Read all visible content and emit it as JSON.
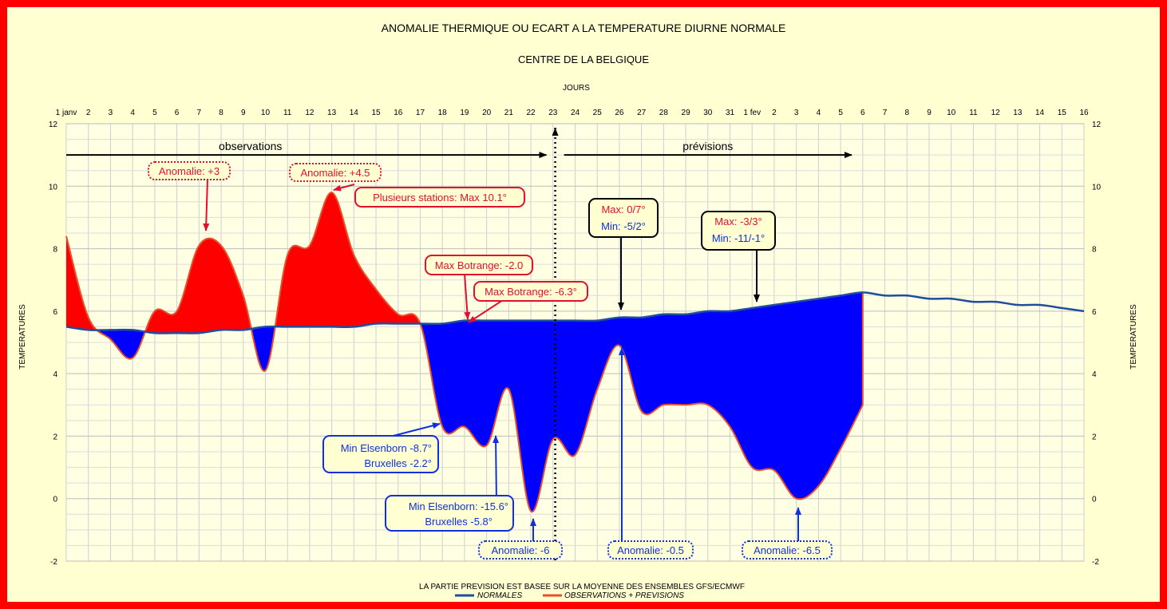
{
  "chart_data": {
    "type": "area",
    "title": "ANOMALIE THERMIQUE OU ECART A LA TEMPERATURE DIURNE NORMALE",
    "subtitle": "CENTRE DE LA BELGIQUE",
    "xlabel": "JOURS",
    "ylabel_left": "TEMPERATURES",
    "ylabel_right": "TEMPERATURES",
    "ylim": [
      -2,
      12
    ],
    "yticks": [
      -2,
      0,
      2,
      4,
      6,
      8,
      10,
      12
    ],
    "xlim": [
      1,
      47
    ],
    "grid": true,
    "xtick_labels": [
      "1 janv",
      "2",
      "3",
      "4",
      "5",
      "6",
      "7",
      "8",
      "9",
      "10",
      "11",
      "12",
      "13",
      "14",
      "15",
      "16",
      "17",
      "18",
      "19",
      "20",
      "21",
      "22",
      "23",
      "24",
      "25",
      "26",
      "27",
      "28",
      "29",
      "30",
      "31",
      "1 fev",
      "2",
      "3",
      "4",
      "5",
      "6",
      "7",
      "8",
      "9",
      "10",
      "11",
      "12",
      "13",
      "14",
      "15",
      "16"
    ],
    "footnote": "LA PARTIE PREVISION EST BASEE SUR LA MOYENNE DES ENSEMBLES GFS/ECMWF",
    "legend_position": "bottom",
    "series": [
      {
        "name": "NORMALES",
        "color": "#1f4e9c",
        "x": [
          1,
          2,
          3,
          4,
          5,
          6,
          7,
          8,
          9,
          10,
          11,
          12,
          13,
          14,
          15,
          16,
          17,
          18,
          19,
          20,
          21,
          22,
          23,
          24,
          25,
          26,
          27,
          28,
          29,
          30,
          31,
          32,
          33,
          34,
          35,
          36,
          37,
          38,
          39,
          40,
          41,
          42,
          43,
          44,
          45,
          46,
          47
        ],
        "y": [
          5.5,
          5.4,
          5.4,
          5.4,
          5.3,
          5.3,
          5.3,
          5.4,
          5.4,
          5.5,
          5.5,
          5.5,
          5.5,
          5.5,
          5.6,
          5.6,
          5.6,
          5.6,
          5.7,
          5.7,
          5.7,
          5.7,
          5.7,
          5.7,
          5.7,
          5.8,
          5.8,
          5.9,
          5.9,
          6.0,
          6.0,
          6.1,
          6.2,
          6.3,
          6.4,
          6.5,
          6.6,
          6.5,
          6.5,
          6.4,
          6.4,
          6.3,
          6.3,
          6.2,
          6.2,
          6.1,
          6.0
        ]
      },
      {
        "name": "OBSERVATIONS + PREVISIONS",
        "color": "#e8502a",
        "x": [
          1,
          2,
          3,
          4,
          5,
          6,
          7,
          8,
          9,
          10,
          11,
          12,
          13,
          14,
          15,
          16,
          17,
          18,
          19,
          20,
          21,
          22,
          23,
          24,
          25,
          26,
          27,
          28,
          29,
          30,
          31,
          32,
          33,
          34,
          35,
          36,
          37
        ],
        "y": [
          8.4,
          5.8,
          5.1,
          4.5,
          6.0,
          6.0,
          8.1,
          8.1,
          6.5,
          4.1,
          7.8,
          8.1,
          9.8,
          7.8,
          6.7,
          5.9,
          5.6,
          2.3,
          2.3,
          1.7,
          3.5,
          -0.4,
          1.9,
          1.4,
          3.5,
          4.9,
          2.8,
          3.0,
          3.0,
          3.0,
          2.3,
          1.0,
          0.9,
          0.0,
          0.4,
          1.6,
          3.0
        ]
      }
    ],
    "fill_colors": {
      "positive": "#ff0000",
      "negative": "#0000ff"
    },
    "split_day": 23.1,
    "arrows": [
      {
        "label": "observations",
        "from": 1,
        "to": 22.7,
        "y": 11.0
      },
      {
        "label": "prévisions",
        "from": 23.5,
        "to": 36.5,
        "y": 11.0
      }
    ]
  },
  "annotations": [
    {
      "text": "Anomalie: +3",
      "color": "#ff0000",
      "border": "dotted"
    },
    {
      "text": "Anomalie: +4.5",
      "color": "#ff0000",
      "border": "dotted"
    },
    {
      "text": "Plusieurs stations: Max 10.1°",
      "color": "#ff0000",
      "border": "solid"
    },
    {
      "text": "Max Botrange: -2.0",
      "color": "#ff0000",
      "border": "solid"
    },
    {
      "text": "Max Botrange: -6.3°",
      "color": "#ff0000",
      "border": "solid"
    },
    {
      "lines": [
        "Max: 0/7°",
        "Min: -5/2°"
      ]
    },
    {
      "lines": [
        "Max: -3/3°",
        "Min: -11/-1°"
      ]
    },
    {
      "lines": [
        "Min Elsenborn -8.7°",
        "Bruxelles -2.2°"
      ],
      "color": "#0033cc"
    },
    {
      "lines": [
        "Min Elsenborn: -15.6°",
        "Bruxelles -5.8°"
      ],
      "color": "#0033cc"
    },
    {
      "text": "Anomalie: -6",
      "color": "#0033cc",
      "border": "dotted"
    },
    {
      "text": "Anomalie: -0.5",
      "color": "#0033cc",
      "border": "dotted"
    },
    {
      "text": "Anomalie: -6.5",
      "color": "#0033cc",
      "border": "dotted"
    }
  ]
}
